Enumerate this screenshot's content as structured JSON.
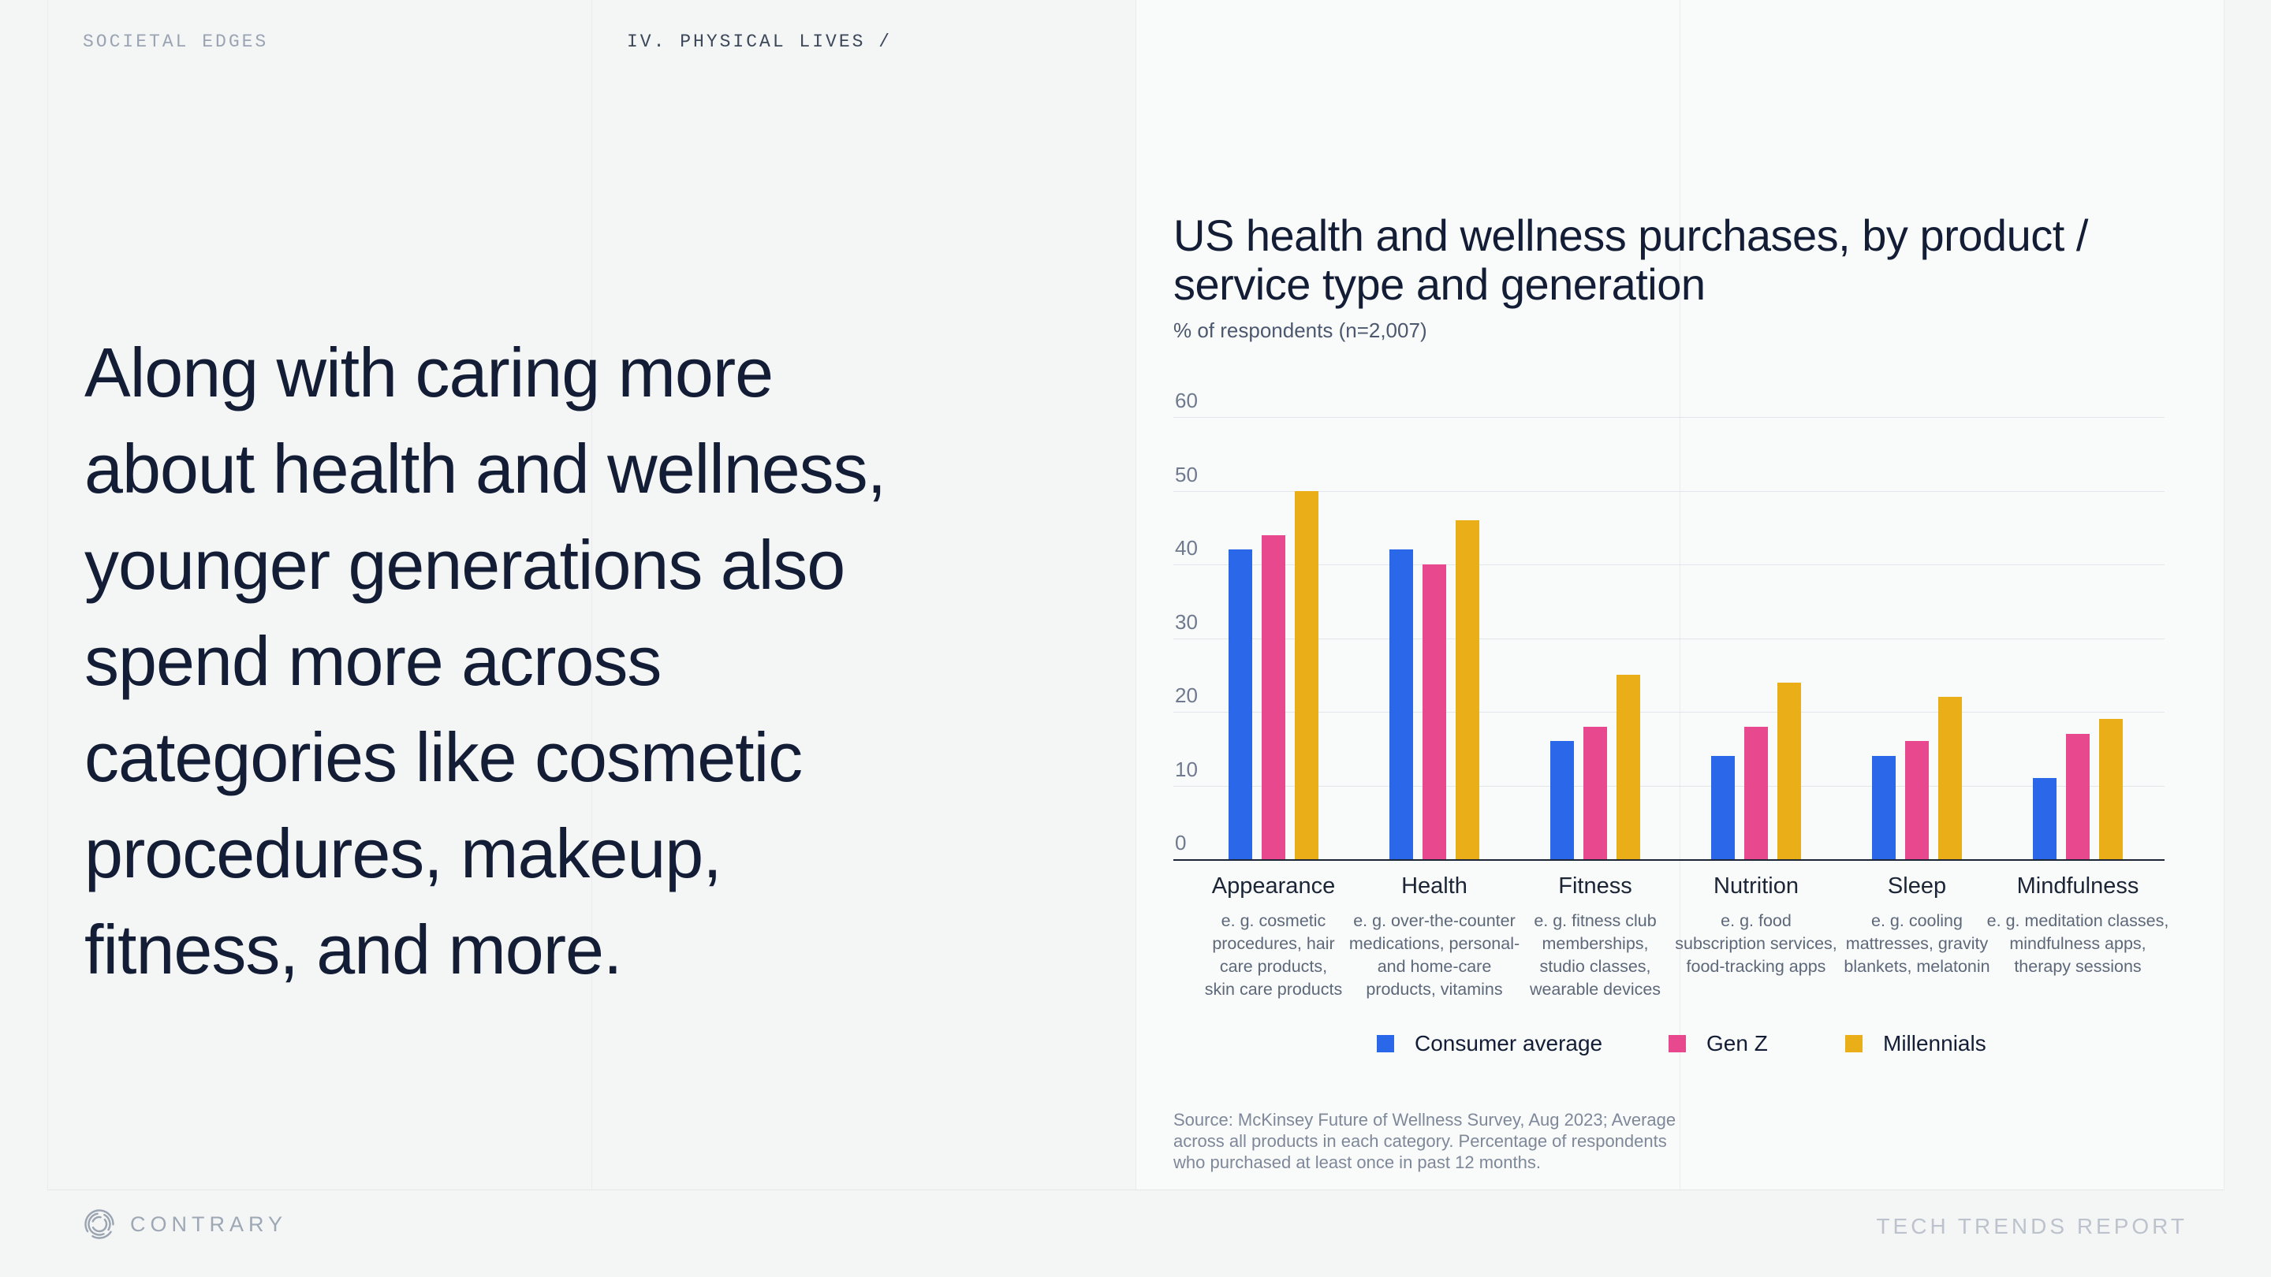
{
  "header": {
    "left_label": "SOCIETAL EDGES",
    "section_label": "IV. PHYSICAL LIVES /"
  },
  "main_text": {
    "lines": [
      "Along with caring more",
      "about health and wellness,",
      "younger generations also",
      "spend more across",
      "categories like cosmetic",
      "procedures, makeup,",
      "fitness, and more."
    ]
  },
  "chart": {
    "title_lines": [
      "US health and wellness purchases, by product /",
      "service type and generation"
    ],
    "subtitle": "% of respondents (n=2,007)",
    "source_lines": [
      "Source: McKinsey Future of Wellness Survey, Aug 2023; Average",
      "across all products in each category. Percentage of respondents",
      "who purchased at least once in past 12 months."
    ]
  },
  "chart_data": {
    "type": "bar",
    "title": "US health and wellness purchases, by product / service type and generation",
    "subtitle": "% of respondents (n=2,007)",
    "categories": [
      "Appearance",
      "Health",
      "Fitness",
      "Nutrition",
      "Sleep",
      "Mindfulness"
    ],
    "category_descriptions": [
      [
        "e. g. cosmetic",
        "procedures, hair",
        "care products,",
        "skin care products"
      ],
      [
        "e. g. over-the-counter",
        "medications, personal-",
        "and home-care",
        "products, vitamins"
      ],
      [
        "e. g. fitness club",
        "memberships,",
        "studio classes,",
        "wearable devices"
      ],
      [
        "e. g. food",
        "subscription services,",
        "food-tracking apps"
      ],
      [
        "e. g. cooling",
        "mattresses, gravity",
        "blankets, melatonin"
      ],
      [
        "e. g. meditation classes,",
        "mindfulness apps,",
        "therapy sessions"
      ]
    ],
    "series": [
      {
        "name": "Consumer average",
        "color": "#2a67e9",
        "values": [
          42,
          42,
          16,
          14,
          14,
          11
        ]
      },
      {
        "name": "Gen Z",
        "color": "#e8488e",
        "values": [
          44,
          40,
          18,
          18,
          16,
          17
        ]
      },
      {
        "name": "Millennials",
        "color": "#e9ae18",
        "values": [
          50,
          46,
          25,
          24,
          22,
          19
        ]
      }
    ],
    "ylim": [
      0,
      60
    ],
    "yticks": [
      0,
      10,
      20,
      30,
      40,
      50,
      60
    ],
    "grid": true,
    "legend_position": "bottom"
  },
  "footer": {
    "brand": "CONTRARY",
    "report": "TECH TRENDS REPORT"
  },
  "colors": {
    "background": "#f4f5f5",
    "panel": "#f9fafa",
    "accent_blue": "#2a67e9",
    "accent_pink": "#e8488e",
    "accent_yellow": "#e9ae18",
    "text_dark": "#131d35",
    "axis": "#1b2535"
  }
}
